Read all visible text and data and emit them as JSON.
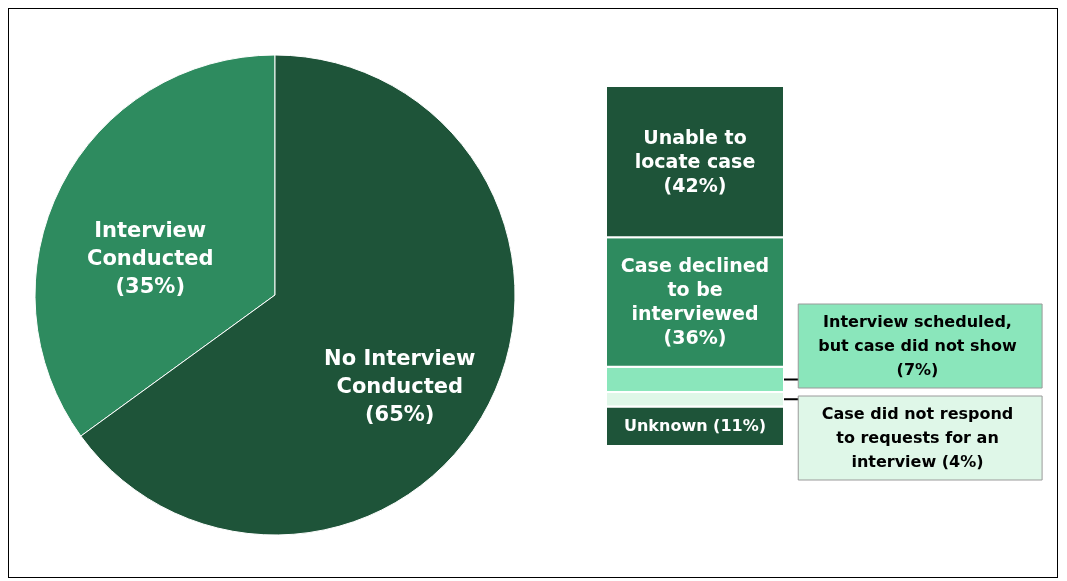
{
  "chart_data": [
    {
      "type": "pie",
      "categories": [
        "Interview Conducted",
        "No Interview Conducted"
      ],
      "values": [
        35,
        65
      ],
      "value_labels": [
        "(35%)",
        "(65%)"
      ],
      "colors": [
        "#2e8b5f",
        "#1e5439"
      ],
      "legend": false
    },
    {
      "type": "bar",
      "stacked": true,
      "categories": [
        null
      ],
      "legend": false,
      "series": [
        {
          "name": "Unknown",
          "color": "#1e5439",
          "values": [
            11
          ],
          "value_labels": [
            "(11%)"
          ]
        },
        {
          "name": "Case did not respond to requests for an interview",
          "color": "#dff7e8",
          "values": [
            4
          ],
          "value_labels": [
            "(4%)"
          ]
        },
        {
          "name": "Interview scheduled, but case did not show",
          "color": "#8ae6bb",
          "values": [
            7
          ],
          "value_labels": [
            "(7%)"
          ]
        },
        {
          "name": "Case declined to be interviewed",
          "color": "#2e8b5f",
          "values": [
            36
          ],
          "value_labels": [
            "(36%)"
          ]
        },
        {
          "name": "Unable to locate case",
          "color": "#1e5439",
          "values": [
            42
          ],
          "value_labels": [
            "(42%)"
          ]
        }
      ]
    }
  ]
}
